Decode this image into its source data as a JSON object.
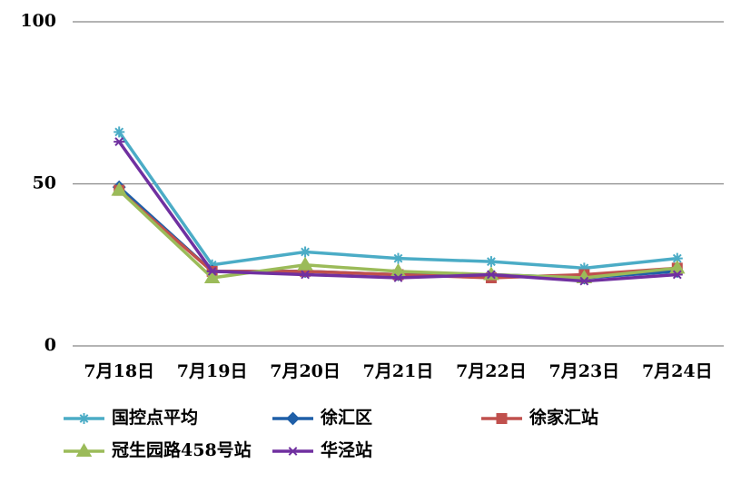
{
  "chart_data": {
    "type": "line",
    "categories": [
      "7月18日",
      "7月19日",
      "7月20日",
      "7月21日",
      "7月22日",
      "7月23日",
      "7月24日"
    ],
    "series": [
      {
        "name": "国控点平均",
        "color": "#4bacc6",
        "values": [
          66,
          25,
          29,
          27,
          26,
          24,
          27
        ]
      },
      {
        "name": "徐汇区",
        "color": "#1f5fa8",
        "values": [
          49,
          23,
          23,
          22,
          22,
          21,
          23
        ]
      },
      {
        "name": "徐家汇站",
        "color": "#c0504d",
        "values": [
          48,
          23,
          23,
          22,
          21,
          22,
          24
        ]
      },
      {
        "name": "冠生园路458号站",
        "color": "#9bbb59",
        "values": [
          48,
          21,
          25,
          23,
          22,
          21,
          24
        ]
      },
      {
        "name": "华泾站",
        "color": "#7030a0",
        "values": [
          63,
          23,
          22,
          21,
          22,
          20,
          22
        ]
      }
    ],
    "ylim": [
      0,
      100
    ],
    "yticks": [
      0,
      50,
      100
    ],
    "grid": true,
    "legend": "bottom"
  }
}
